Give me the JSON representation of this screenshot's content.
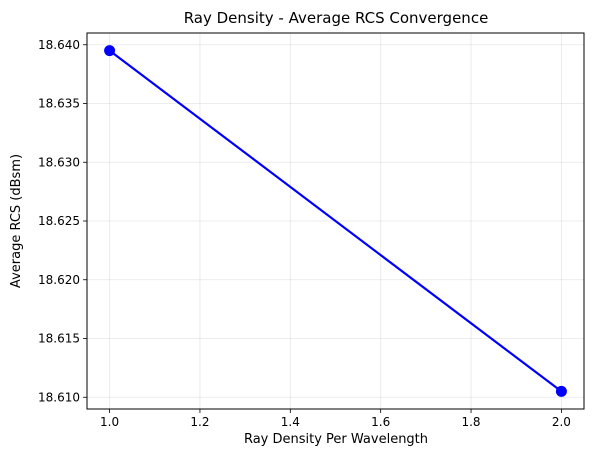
{
  "chart_data": {
    "type": "line",
    "title": "Ray Density - Average RCS Convergence",
    "xlabel": "Ray Density Per Wavelength",
    "ylabel": "Average RCS (dBsm)",
    "x": [
      1.0,
      2.0
    ],
    "series": [
      {
        "values": [
          18.6395,
          18.6105
        ],
        "color": "#0000ff",
        "marker": "circle"
      }
    ],
    "xlim": [
      0.95,
      2.05
    ],
    "ylim": [
      18.609,
      18.641
    ],
    "xticks": [
      1.0,
      1.2,
      1.4,
      1.6,
      1.8,
      2.0
    ],
    "xtick_labels": [
      "1.0",
      "1.2",
      "1.4",
      "1.6",
      "1.8",
      "2.0"
    ],
    "yticks": [
      18.61,
      18.615,
      18.62,
      18.625,
      18.63,
      18.635,
      18.64
    ],
    "ytick_labels": [
      "18.610",
      "18.615",
      "18.620",
      "18.625",
      "18.630",
      "18.635",
      "18.640"
    ],
    "grid": true,
    "legend": "none"
  }
}
